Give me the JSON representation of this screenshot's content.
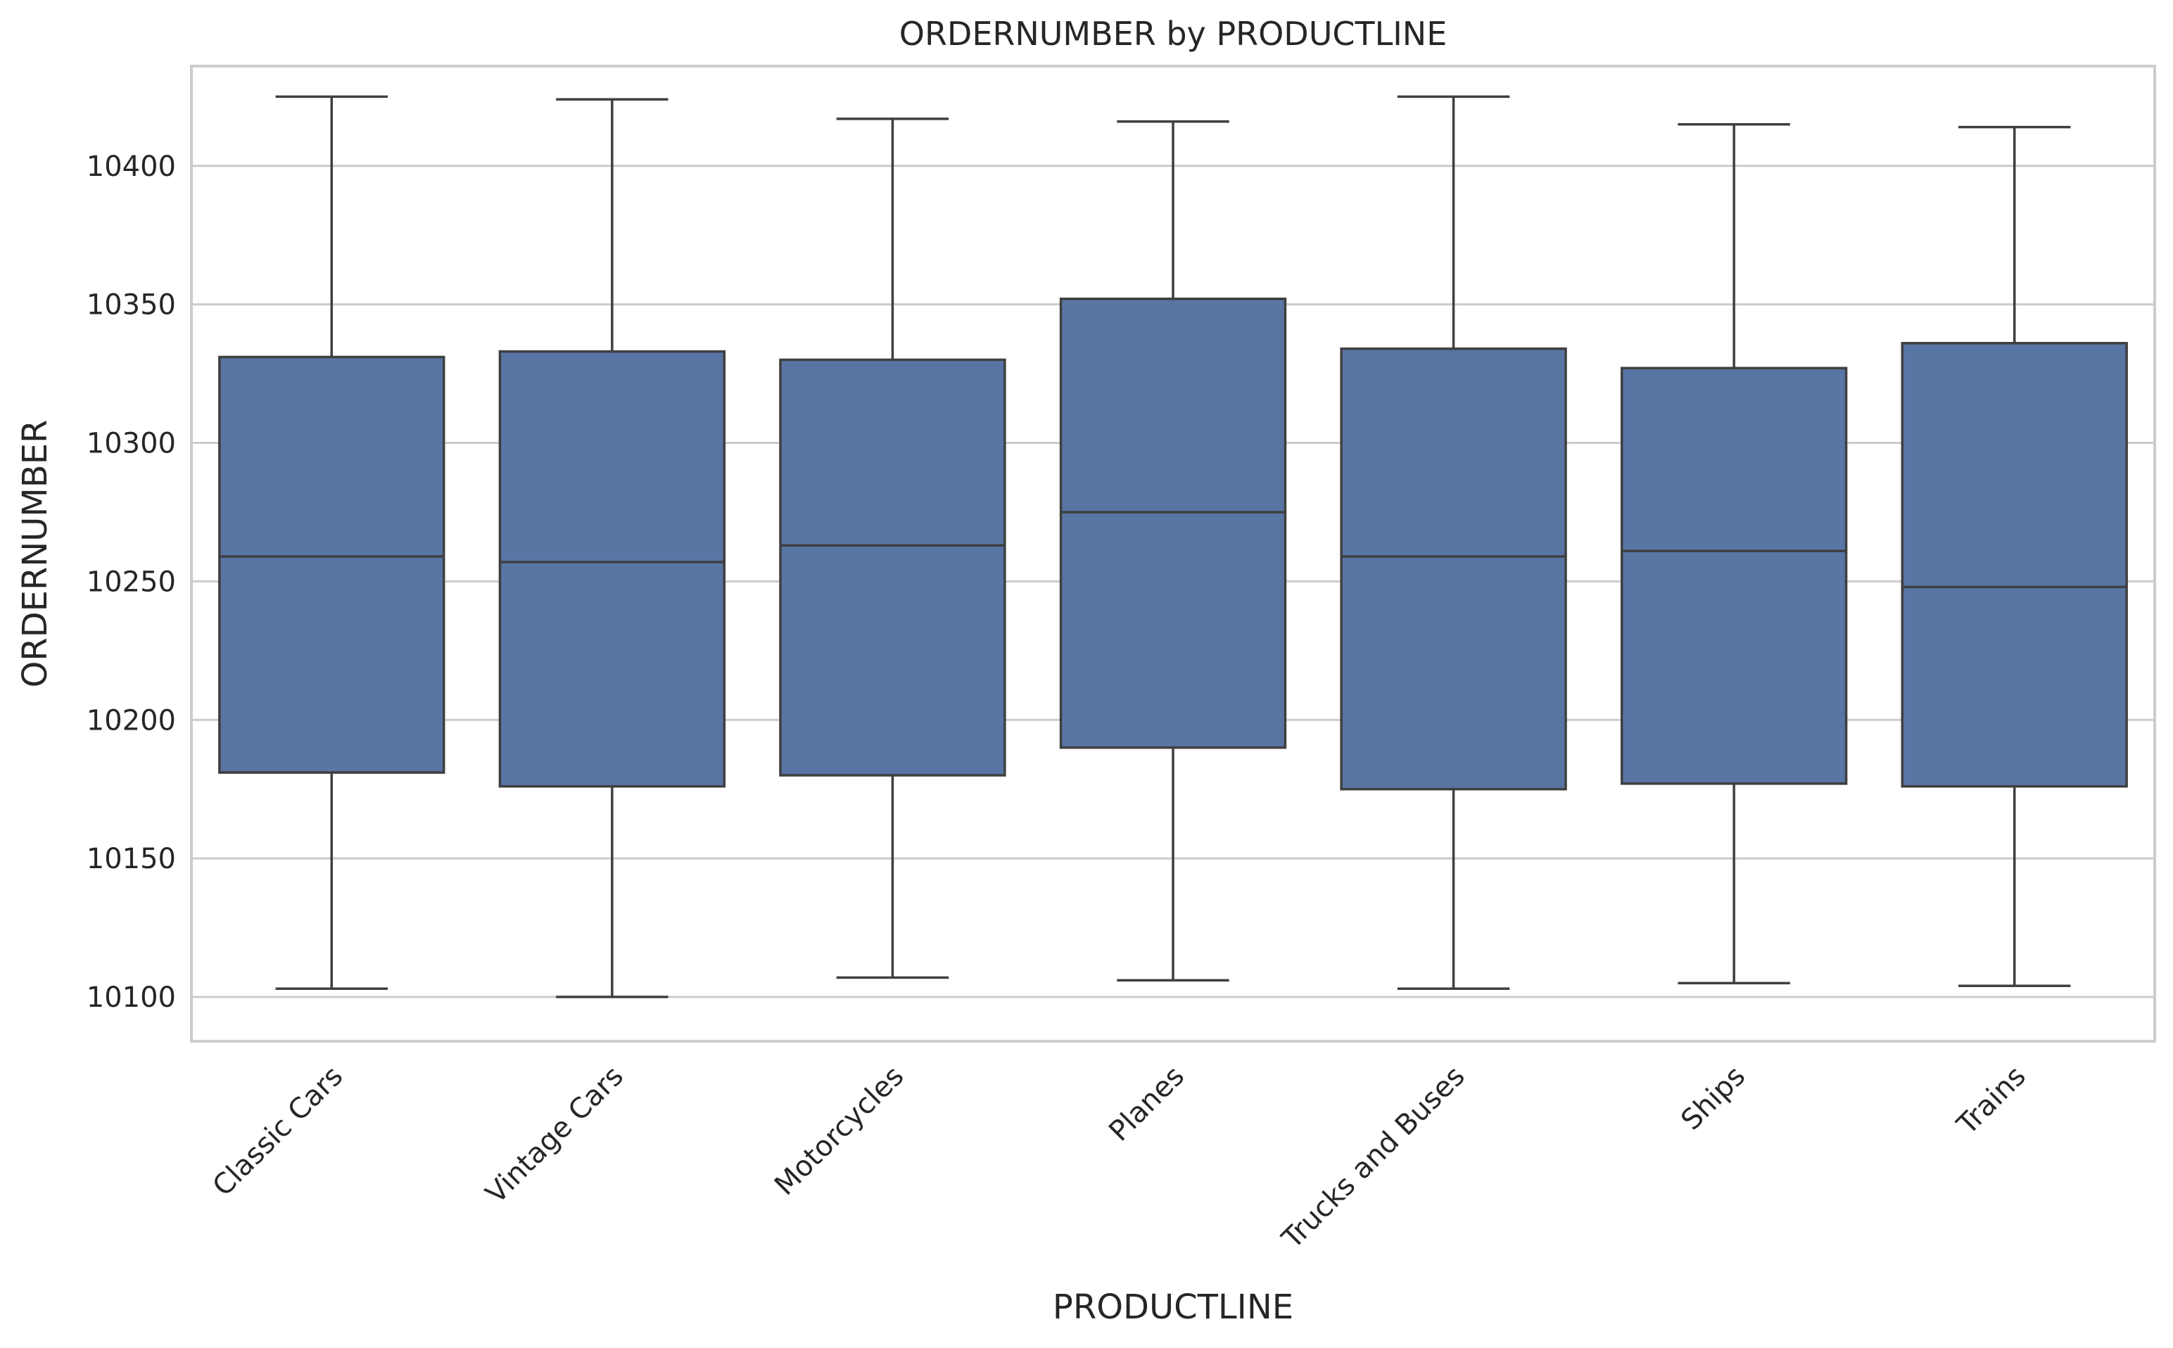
{
  "colors": {
    "box_fill": "#5875a4",
    "line": "#3f3f3f",
    "grid": "#cccccc",
    "text": "#262626"
  },
  "chart_data": {
    "type": "box",
    "title": "ORDERNUMBER by PRODUCTLINE",
    "xlabel": "PRODUCTLINE",
    "ylabel": "ORDERNUMBER",
    "ylim": [
      10084,
      10436
    ],
    "yticks": [
      10100,
      10150,
      10200,
      10250,
      10300,
      10350,
      10400
    ],
    "grid": true,
    "categories": [
      "Classic Cars",
      "Vintage Cars",
      "Motorcycles",
      "Planes",
      "Trucks and Buses",
      "Ships",
      "Trains"
    ],
    "boxes": [
      {
        "name": "Classic Cars",
        "min": 10103,
        "q1": 10181,
        "median": 10259,
        "q3": 10331,
        "max": 10425
      },
      {
        "name": "Vintage Cars",
        "min": 10100,
        "q1": 10176,
        "median": 10257,
        "q3": 10333,
        "max": 10424
      },
      {
        "name": "Motorcycles",
        "min": 10107,
        "q1": 10180,
        "median": 10263,
        "q3": 10330,
        "max": 10417
      },
      {
        "name": "Planes",
        "min": 10106,
        "q1": 10190,
        "median": 10275,
        "q3": 10352,
        "max": 10416
      },
      {
        "name": "Trucks and Buses",
        "min": 10103,
        "q1": 10175,
        "median": 10259,
        "q3": 10334,
        "max": 10425
      },
      {
        "name": "Ships",
        "min": 10105,
        "q1": 10177,
        "median": 10261,
        "q3": 10327,
        "max": 10415
      },
      {
        "name": "Trains",
        "min": 10104,
        "q1": 10176,
        "median": 10248,
        "q3": 10336,
        "max": 10414
      }
    ]
  }
}
